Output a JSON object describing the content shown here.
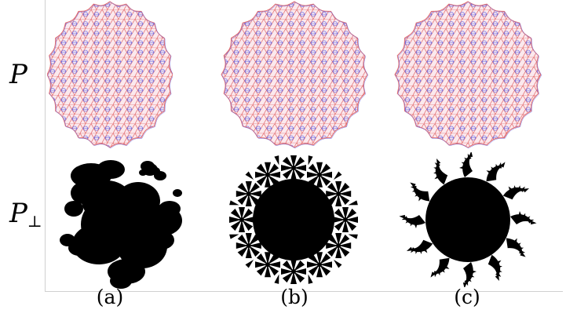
{
  "rows": {
    "top_label": "P",
    "bottom_label": "P",
    "bottom_subscript": "⊥"
  },
  "columns": [
    {
      "label": "(a)",
      "center": 140
    },
    {
      "label": "(b)",
      "center": 375
    },
    {
      "label": "(c)",
      "center": 595
    }
  ],
  "colors": {
    "tiling_red": "#e36a6a",
    "tiling_blue": "#6a6ae3",
    "tiling_fill": "#fbe9ee",
    "window_fill": "#000000",
    "axis": "#d0d0d0"
  },
  "icons": {
    "tiling": "dodecagonal-quasicrystal-tiling",
    "window_a": "fractal-acceptance-window",
    "window_b": "flower-rosette-acceptance-window",
    "window_c": "spiral-arm-acceptance-window"
  }
}
